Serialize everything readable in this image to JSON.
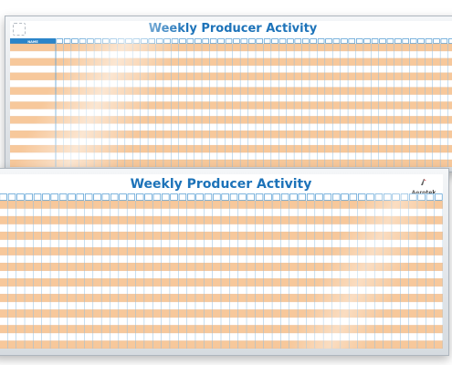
{
  "boards": [
    {
      "title": "Weekly Producer Activity",
      "name_column_label": "NAME",
      "rows": 17,
      "columns": 52
    },
    {
      "title": "Weekly Producer Activity",
      "brand": "Aerotek",
      "rows": 19,
      "columns": 52
    }
  ],
  "colors": {
    "title_blue": "#1d73b9",
    "header_blue": "#2b85c9",
    "row_orange": "#f7c89b",
    "grid_line": "#8fbfe3",
    "frame": "#c4cad0",
    "logo_accent": "#e03a3e"
  }
}
